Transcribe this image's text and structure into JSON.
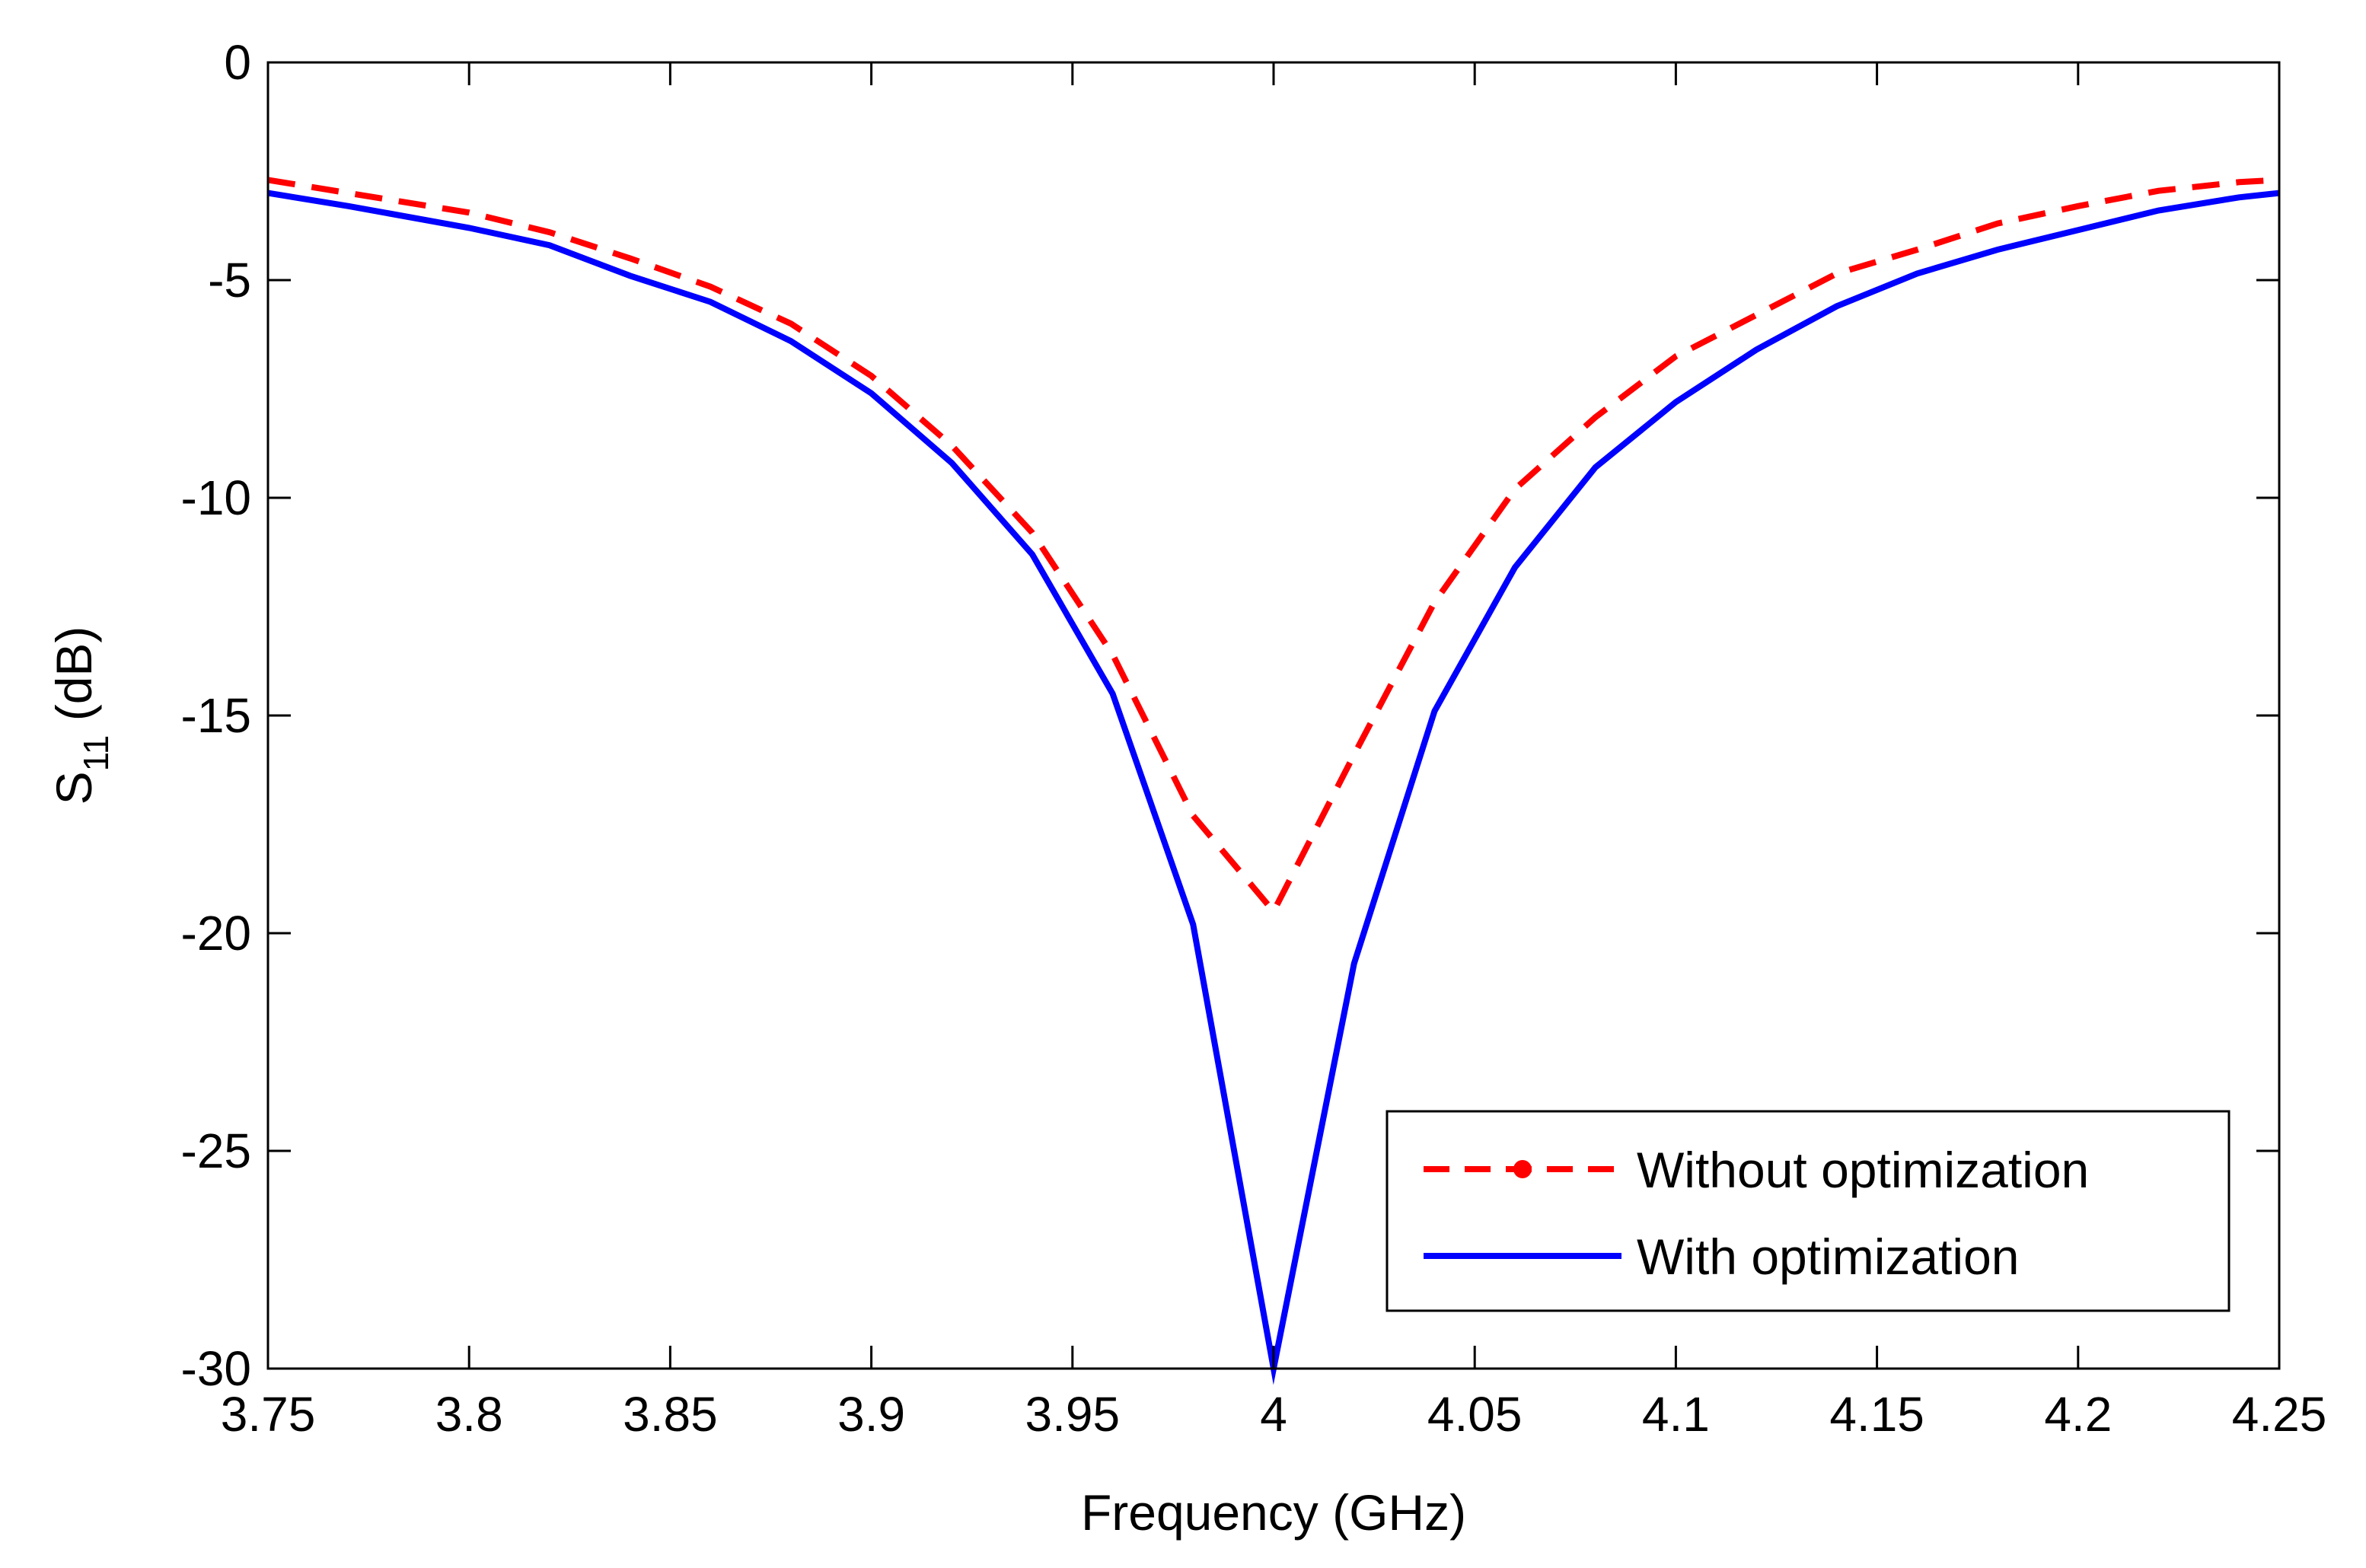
{
  "chart_data": {
    "type": "line",
    "title": "",
    "xlabel": "Frequency (GHz)",
    "ylabel_main": "S",
    "ylabel_sub": "11",
    "ylabel_unit": " (dB)",
    "xlim": [
      3.75,
      4.25
    ],
    "ylim": [
      -30,
      0
    ],
    "xticks": [
      3.75,
      3.8,
      3.85,
      3.9,
      3.95,
      4,
      4.05,
      4.1,
      4.15,
      4.2,
      4.25
    ],
    "xtick_labels": [
      "3.75",
      "3.8",
      "3.85",
      "3.9",
      "3.95",
      "4",
      "4.05",
      "4.1",
      "4.15",
      "4.2",
      "4.25"
    ],
    "yticks": [
      0,
      -5,
      -10,
      -15,
      -20,
      -25,
      -30
    ],
    "ytick_labels": [
      "0",
      "-5",
      "-10",
      "-15",
      "-20",
      "-25",
      "-30"
    ],
    "grid": false,
    "legend_position": "bottom-right",
    "series": [
      {
        "name": "Without optimization",
        "color": "#ff0000",
        "style": "dashed",
        "x": [
          3.75,
          3.77,
          3.8,
          3.82,
          3.84,
          3.86,
          3.88,
          3.9,
          3.92,
          3.94,
          3.96,
          3.98,
          4.0,
          4.02,
          4.04,
          4.06,
          4.08,
          4.1,
          4.12,
          4.14,
          4.16,
          4.18,
          4.2,
          4.22,
          4.24,
          4.25
        ],
        "y": [
          -2.7,
          -3.0,
          -3.45,
          -3.9,
          -4.5,
          -5.15,
          -6.0,
          -7.2,
          -8.8,
          -10.8,
          -13.6,
          -17.3,
          -19.5,
          -15.9,
          -12.4,
          -9.8,
          -8.15,
          -6.75,
          -5.8,
          -4.85,
          -4.3,
          -3.7,
          -3.3,
          -2.95,
          -2.75,
          -2.7
        ]
      },
      {
        "name": "With optimization",
        "color": "#0000ff",
        "style": "solid",
        "x": [
          3.75,
          3.77,
          3.8,
          3.82,
          3.84,
          3.86,
          3.88,
          3.9,
          3.92,
          3.94,
          3.96,
          3.98,
          4.0,
          4.02,
          4.04,
          4.06,
          4.08,
          4.1,
          4.12,
          4.14,
          4.16,
          4.18,
          4.2,
          4.22,
          4.24,
          4.25
        ],
        "y": [
          -3.0,
          -3.3,
          -3.8,
          -4.2,
          -4.9,
          -5.5,
          -6.4,
          -7.6,
          -9.2,
          -11.3,
          -14.5,
          -19.8,
          -30.0,
          -20.7,
          -14.9,
          -11.6,
          -9.3,
          -7.8,
          -6.6,
          -5.6,
          -4.85,
          -4.3,
          -3.85,
          -3.4,
          -3.1,
          -3.0
        ]
      }
    ]
  }
}
